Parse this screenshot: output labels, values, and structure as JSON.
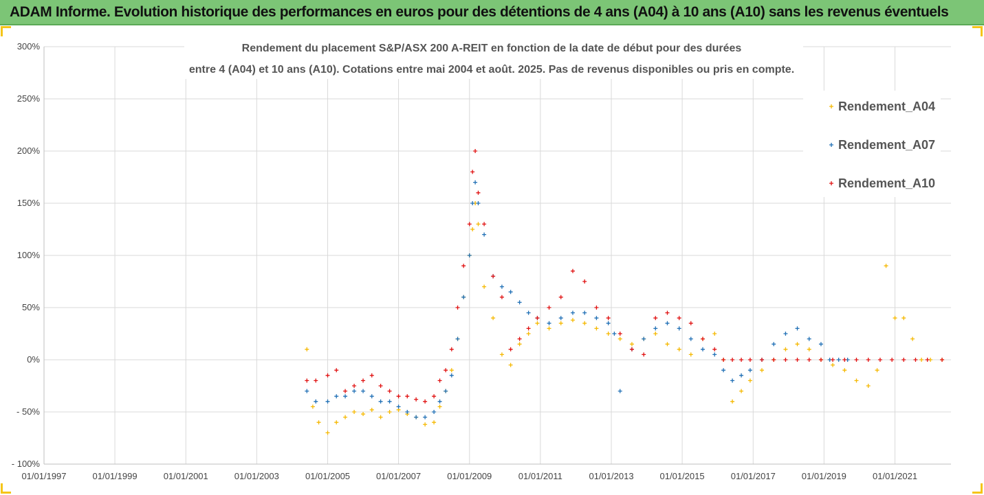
{
  "header": {
    "title": "ADAM Informe. Evolution historique des performances en euros pour des détentions de 4 ans (A04) à 10 ans (A10) sans les revenus éventuels",
    "background": "#7cc576"
  },
  "chart_data": {
    "type": "scatter",
    "title_line1": "Rendement du placement S&P/ASX 200 A-REIT en fonction de la date de début pour des durées",
    "title_line2": "entre 4 (A04) et 10 ans (A10). Cotations entre mai 2004 et août. 2025. Pas de revenus disponibles ou pris en compte.",
    "xlim": [
      "1997-01-01",
      "2022-08-01"
    ],
    "ylim": [
      -100,
      300
    ],
    "y_unit": "%",
    "y_ticks": [
      300,
      250,
      200,
      150,
      100,
      50,
      0,
      -50,
      -100
    ],
    "y_tick_labels": [
      "300%",
      "250%",
      "200%",
      "150%",
      "100%",
      "50%",
      "0%",
      "- 50%",
      "- 100%"
    ],
    "x_ticks": [
      "1997-01-01",
      "1999-01-01",
      "2001-01-01",
      "2003-01-01",
      "2005-01-01",
      "2007-01-01",
      "2009-01-01",
      "2011-01-01",
      "2013-01-01",
      "2015-01-01",
      "2017-01-01",
      "2019-01-01",
      "2021-01-01"
    ],
    "x_tick_labels": [
      "01/01/1997",
      "01/01/1999",
      "01/01/2001",
      "01/01/2003",
      "01/01/2005",
      "01/01/2007",
      "01/01/2009",
      "01/01/2011",
      "01/01/2013",
      "01/01/2015",
      "01/01/2017",
      "01/01/2019",
      "01/01/2021"
    ],
    "grid": true,
    "legend_position": "top-right",
    "marker": "+",
    "series": [
      {
        "name": "Rendement_A04",
        "color": "#f5b800",
        "x": [
          "2004-06-01",
          "2004-08-01",
          "2004-10-01",
          "2005-01-01",
          "2005-04-01",
          "2005-07-01",
          "2005-10-01",
          "2006-01-01",
          "2006-04-01",
          "2006-07-01",
          "2006-10-01",
          "2007-01-01",
          "2007-04-01",
          "2007-07-01",
          "2007-10-01",
          "2008-01-01",
          "2008-03-01",
          "2008-05-01",
          "2008-07-01",
          "2008-09-01",
          "2008-11-01",
          "2009-01-01",
          "2009-02-01",
          "2009-03-01",
          "2009-04-01",
          "2009-06-01",
          "2009-09-01",
          "2009-12-01",
          "2010-03-01",
          "2010-06-01",
          "2010-09-01",
          "2010-12-01",
          "2011-04-01",
          "2011-08-01",
          "2011-12-01",
          "2012-04-01",
          "2012-08-01",
          "2012-12-01",
          "2013-04-01",
          "2013-08-01",
          "2013-12-01",
          "2014-04-01",
          "2014-08-01",
          "2014-12-01",
          "2015-04-01",
          "2015-08-01",
          "2015-12-01",
          "2016-03-01",
          "2016-06-01",
          "2016-09-01",
          "2016-12-01",
          "2017-04-01",
          "2017-08-01",
          "2017-12-01",
          "2018-04-01",
          "2018-08-01",
          "2018-12-01",
          "2019-04-01",
          "2019-08-01",
          "2019-12-01",
          "2020-04-01",
          "2020-07-01",
          "2020-10-01",
          "2021-01-01",
          "2021-04-01",
          "2021-07-01",
          "2021-10-01",
          "2022-01-01",
          "2022-05-01"
        ],
        "values": [
          10,
          -45,
          -60,
          -70,
          -60,
          -55,
          -50,
          -52,
          -48,
          -55,
          -50,
          -48,
          -52,
          -55,
          -62,
          -60,
          -45,
          -30,
          -10,
          20,
          60,
          100,
          125,
          150,
          130,
          70,
          40,
          5,
          -5,
          15,
          25,
          35,
          30,
          35,
          38,
          35,
          30,
          25,
          20,
          15,
          20,
          25,
          15,
          10,
          5,
          20,
          25,
          0,
          -40,
          -30,
          -20,
          -10,
          0,
          10,
          15,
          10,
          0,
          -5,
          -10,
          -20,
          -25,
          -10,
          90,
          40,
          40,
          20,
          0,
          0,
          0
        ]
      },
      {
        "name": "Rendement_A07",
        "color": "#1f6fb5",
        "x": [
          "2004-06-01",
          "2004-09-01",
          "2005-01-01",
          "2005-04-01",
          "2005-07-01",
          "2005-10-01",
          "2006-01-01",
          "2006-04-01",
          "2006-07-01",
          "2006-10-01",
          "2007-01-01",
          "2007-04-01",
          "2007-07-01",
          "2007-10-01",
          "2008-01-01",
          "2008-03-01",
          "2008-05-01",
          "2008-07-01",
          "2008-09-01",
          "2008-11-01",
          "2009-01-01",
          "2009-02-01",
          "2009-03-01",
          "2009-04-01",
          "2009-06-01",
          "2009-09-01",
          "2009-12-01",
          "2010-03-01",
          "2010-06-01",
          "2010-09-01",
          "2010-12-01",
          "2011-04-01",
          "2011-08-01",
          "2011-12-01",
          "2012-04-01",
          "2012-08-01",
          "2012-12-01",
          "2013-02-01",
          "2013-04-01",
          "2013-08-01",
          "2013-12-01",
          "2014-04-01",
          "2014-08-01",
          "2014-12-01",
          "2015-04-01",
          "2015-08-01",
          "2015-12-01",
          "2016-03-01",
          "2016-06-01",
          "2016-09-01",
          "2016-12-01",
          "2017-04-01",
          "2017-08-01",
          "2017-12-01",
          "2018-04-01",
          "2018-08-01",
          "2018-12-01",
          "2019-03-01",
          "2019-06-01",
          "2019-09-01"
        ],
        "values": [
          -30,
          -40,
          -40,
          -35,
          -35,
          -30,
          -30,
          -35,
          -40,
          -40,
          -45,
          -50,
          -55,
          -55,
          -50,
          -40,
          -30,
          -15,
          20,
          60,
          100,
          150,
          170,
          150,
          120,
          80,
          70,
          65,
          55,
          45,
          40,
          35,
          40,
          45,
          45,
          40,
          35,
          25,
          -30,
          10,
          20,
          30,
          35,
          30,
          20,
          10,
          5,
          -10,
          -20,
          -15,
          -10,
          0,
          15,
          25,
          30,
          20,
          15,
          0,
          0,
          0
        ]
      },
      {
        "name": "Rendement_A10",
        "color": "#e01010",
        "x": [
          "2004-06-01",
          "2004-09-01",
          "2005-01-01",
          "2005-04-01",
          "2005-07-01",
          "2005-10-01",
          "2006-01-01",
          "2006-04-01",
          "2006-07-01",
          "2006-10-01",
          "2007-01-01",
          "2007-04-01",
          "2007-07-01",
          "2007-10-01",
          "2008-01-01",
          "2008-03-01",
          "2008-05-01",
          "2008-07-01",
          "2008-09-01",
          "2008-11-01",
          "2009-01-01",
          "2009-02-01",
          "2009-03-01",
          "2009-04-01",
          "2009-06-01",
          "2009-09-01",
          "2009-12-01",
          "2010-03-01",
          "2010-06-01",
          "2010-09-01",
          "2010-12-01",
          "2011-04-01",
          "2011-08-01",
          "2011-12-01",
          "2012-04-01",
          "2012-08-01",
          "2012-12-01",
          "2013-04-01",
          "2013-08-01",
          "2013-12-01",
          "2014-04-01",
          "2014-08-01",
          "2014-12-01",
          "2015-04-01",
          "2015-08-01",
          "2015-12-01",
          "2016-03-01",
          "2016-06-01",
          "2016-09-01",
          "2016-12-01",
          "2017-04-01",
          "2017-08-01",
          "2017-12-01",
          "2018-04-01",
          "2018-08-01",
          "2018-12-01",
          "2019-04-01",
          "2019-08-01",
          "2019-12-01",
          "2020-04-01",
          "2020-08-01",
          "2020-12-01",
          "2021-04-01",
          "2021-08-01",
          "2021-12-01",
          "2022-05-01"
        ],
        "values": [
          -20,
          -20,
          -15,
          -10,
          -30,
          -25,
          -20,
          -15,
          -25,
          -30,
          -35,
          -35,
          -38,
          -40,
          -35,
          -20,
          -10,
          10,
          50,
          90,
          130,
          180,
          200,
          160,
          130,
          80,
          60,
          10,
          20,
          30,
          40,
          50,
          60,
          85,
          75,
          50,
          40,
          25,
          10,
          5,
          40,
          45,
          40,
          35,
          20,
          10,
          0,
          0,
          0,
          0,
          0,
          0,
          0,
          0,
          0,
          0,
          0,
          0,
          0,
          0,
          0,
          0,
          0,
          0,
          0,
          0
        ]
      }
    ]
  }
}
